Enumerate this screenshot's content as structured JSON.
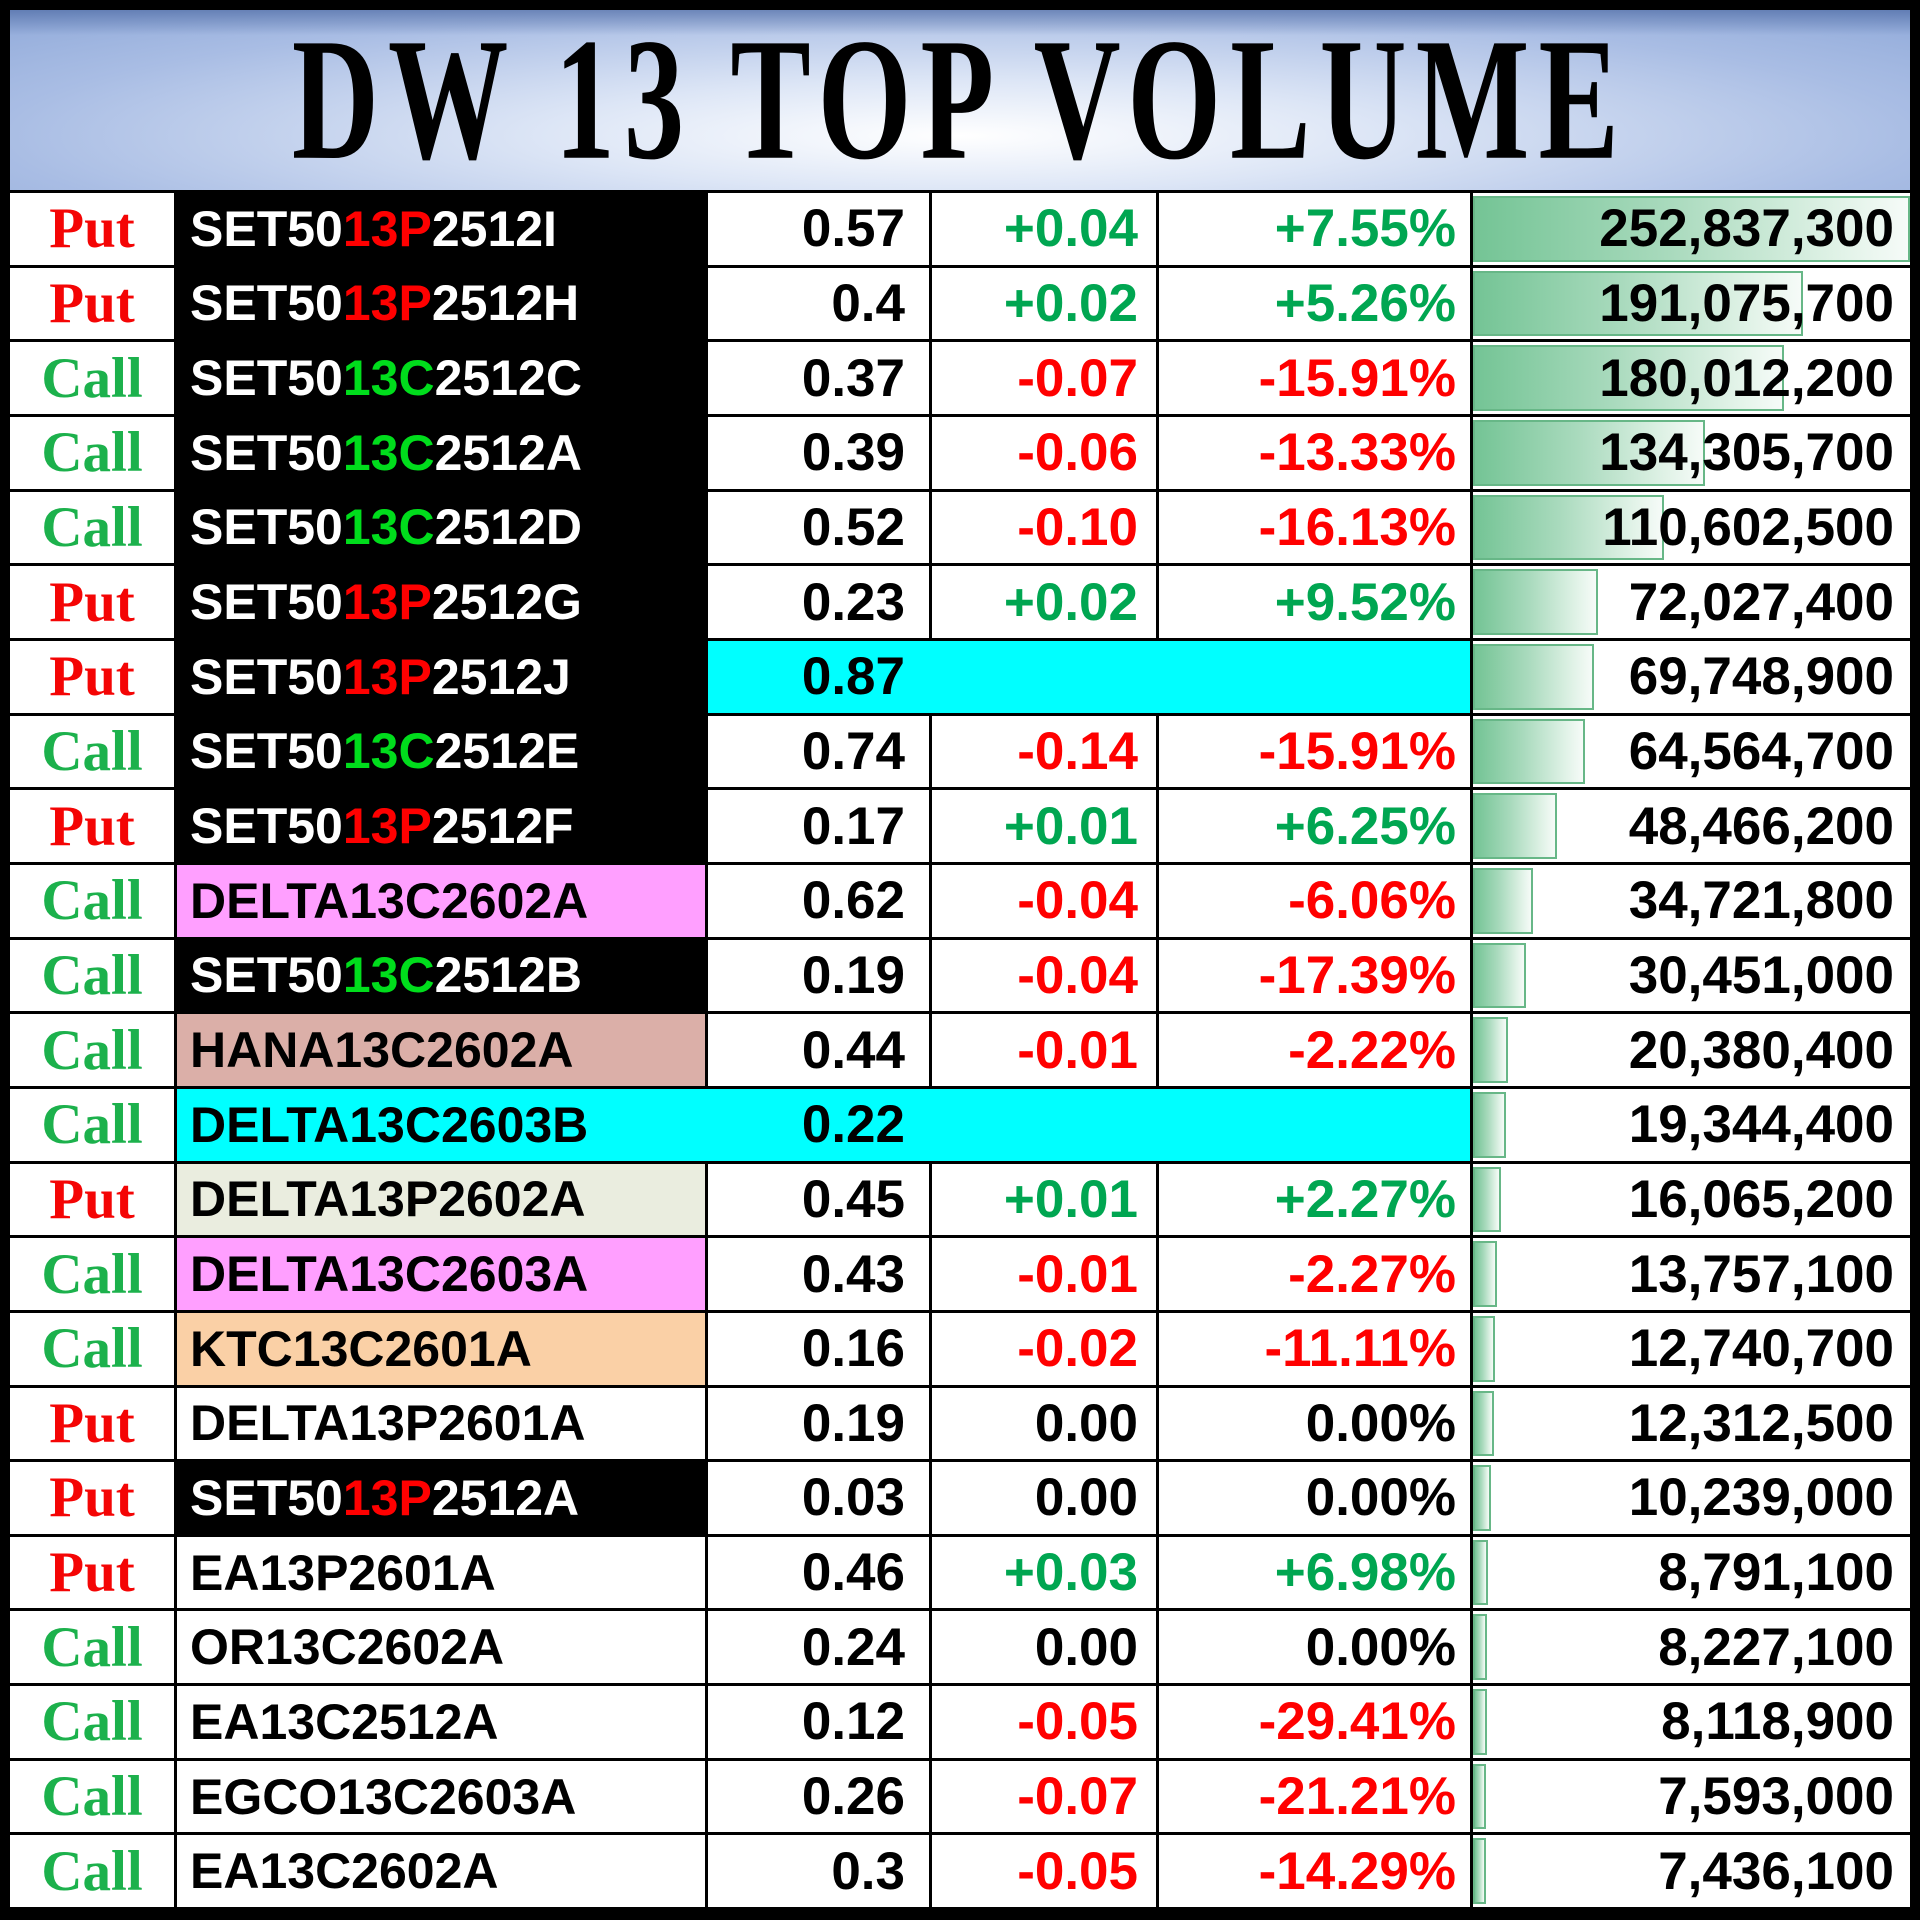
{
  "title": "DW 13 TOP VOLUME",
  "columns": [
    "type",
    "symbol",
    "price",
    "change",
    "change_pct",
    "volume"
  ],
  "colors": {
    "put_red": "#F40505",
    "call_green": "#1CB14C",
    "up_green": "#00A651",
    "down_red": "#FF0000",
    "flat_black": "#000000",
    "symbol_mid_red": "#FF0000",
    "symbol_mid_green": "#00DD1C",
    "highlight_cyan": "#00FFFF",
    "bg_magenta": "#FF9FFF",
    "bg_tan": "#DBAFA8",
    "bg_sage": "#EAEDDF",
    "bg_peach": "#FAD0A6",
    "bar_green": "#74C495",
    "bar_border": "#67B787",
    "header_blue": "#6286C4"
  },
  "rows": [
    {
      "type": "Put",
      "sym_pre": "SET50",
      "sym_mid": "13P",
      "sym_suf": "2512I",
      "sym_bg": "black",
      "price": "0.57",
      "change": "+0.04",
      "change_pct": "+7.55%",
      "volume": "252,837,300",
      "dir": "up",
      "cyan": "none"
    },
    {
      "type": "Put",
      "sym_pre": "SET50",
      "sym_mid": "13P",
      "sym_suf": "2512H",
      "sym_bg": "black",
      "price": "0.4",
      "change": "+0.02",
      "change_pct": "+5.26%",
      "volume": "191,075,700",
      "dir": "up",
      "cyan": "none"
    },
    {
      "type": "Call",
      "sym_pre": "SET50",
      "sym_mid": "13C",
      "sym_suf": "2512C",
      "sym_bg": "black",
      "price": "0.37",
      "change": "-0.07",
      "change_pct": "-15.91%",
      "volume": "180,012,200",
      "dir": "down",
      "cyan": "none"
    },
    {
      "type": "Call",
      "sym_pre": "SET50",
      "sym_mid": "13C",
      "sym_suf": "2512A",
      "sym_bg": "black",
      "price": "0.39",
      "change": "-0.06",
      "change_pct": "-13.33%",
      "volume": "134,305,700",
      "dir": "down",
      "cyan": "none"
    },
    {
      "type": "Call",
      "sym_pre": "SET50",
      "sym_mid": "13C",
      "sym_suf": "2512D",
      "sym_bg": "black",
      "price": "0.52",
      "change": "-0.10",
      "change_pct": "-16.13%",
      "volume": "110,602,500",
      "dir": "down",
      "cyan": "none"
    },
    {
      "type": "Put",
      "sym_pre": "SET50",
      "sym_mid": "13P",
      "sym_suf": "2512G",
      "sym_bg": "black",
      "price": "0.23",
      "change": "+0.02",
      "change_pct": "+9.52%",
      "volume": "72,027,400",
      "dir": "up",
      "cyan": "none"
    },
    {
      "type": "Put",
      "sym_pre": "SET50",
      "sym_mid": "13P",
      "sym_suf": "2512J",
      "sym_bg": "black",
      "price": "0.87",
      "change": "",
      "change_pct": "",
      "volume": "69,748,900",
      "dir": "none",
      "cyan": "price_to_pct"
    },
    {
      "type": "Call",
      "sym_pre": "SET50",
      "sym_mid": "13C",
      "sym_suf": "2512E",
      "sym_bg": "black",
      "price": "0.74",
      "change": "-0.14",
      "change_pct": "-15.91%",
      "volume": "64,564,700",
      "dir": "down",
      "cyan": "none"
    },
    {
      "type": "Put",
      "sym_pre": "SET50",
      "sym_mid": "13P",
      "sym_suf": "2512F",
      "sym_bg": "black",
      "price": "0.17",
      "change": "+0.01",
      "change_pct": "+6.25%",
      "volume": "48,466,200",
      "dir": "up",
      "cyan": "none"
    },
    {
      "type": "Call",
      "sym_pre": "DELTA13C2602A",
      "sym_mid": "",
      "sym_suf": "",
      "sym_bg": "magenta",
      "price": "0.62",
      "change": "-0.04",
      "change_pct": "-6.06%",
      "volume": "34,721,800",
      "dir": "down",
      "cyan": "none"
    },
    {
      "type": "Call",
      "sym_pre": "SET50",
      "sym_mid": "13C",
      "sym_suf": "2512B",
      "sym_bg": "black",
      "price": "0.19",
      "change": "-0.04",
      "change_pct": "-17.39%",
      "volume": "30,451,000",
      "dir": "down",
      "cyan": "none"
    },
    {
      "type": "Call",
      "sym_pre": "HANA13C2602A",
      "sym_mid": "",
      "sym_suf": "",
      "sym_bg": "tan",
      "price": "0.44",
      "change": "-0.01",
      "change_pct": "-2.22%",
      "volume": "20,380,400",
      "dir": "down",
      "cyan": "none"
    },
    {
      "type": "Call",
      "sym_pre": "DELTA13C2603B",
      "sym_mid": "",
      "sym_suf": "",
      "sym_bg": "cyan",
      "price": "0.22",
      "change": "",
      "change_pct": "",
      "volume": "19,344,400",
      "dir": "none",
      "cyan": "symbol_to_pct"
    },
    {
      "type": "Put",
      "sym_pre": "DELTA13P2602A",
      "sym_mid": "",
      "sym_suf": "",
      "sym_bg": "sage",
      "price": "0.45",
      "change": "+0.01",
      "change_pct": "+2.27%",
      "volume": "16,065,200",
      "dir": "up",
      "cyan": "none"
    },
    {
      "type": "Call",
      "sym_pre": "DELTA13C2603A",
      "sym_mid": "",
      "sym_suf": "",
      "sym_bg": "magenta",
      "price": "0.43",
      "change": "-0.01",
      "change_pct": "-2.27%",
      "volume": "13,757,100",
      "dir": "down",
      "cyan": "none"
    },
    {
      "type": "Call",
      "sym_pre": "KTC13C2601A",
      "sym_mid": "",
      "sym_suf": "",
      "sym_bg": "peach",
      "price": "0.16",
      "change": "-0.02",
      "change_pct": "-11.11%",
      "volume": "12,740,700",
      "dir": "down",
      "cyan": "none"
    },
    {
      "type": "Put",
      "sym_pre": "DELTA13P2601A",
      "sym_mid": "",
      "sym_suf": "",
      "sym_bg": "white",
      "price": "0.19",
      "change": "0.00",
      "change_pct": "0.00%",
      "volume": "12,312,500",
      "dir": "flat",
      "cyan": "none"
    },
    {
      "type": "Put",
      "sym_pre": "SET50",
      "sym_mid": "13P",
      "sym_suf": "2512A",
      "sym_bg": "black",
      "price": "0.03",
      "change": "0.00",
      "change_pct": "0.00%",
      "volume": "10,239,000",
      "dir": "flat",
      "cyan": "none"
    },
    {
      "type": "Put",
      "sym_pre": "EA13P2601A",
      "sym_mid": "",
      "sym_suf": "",
      "sym_bg": "white",
      "price": "0.46",
      "change": "+0.03",
      "change_pct": "+6.98%",
      "volume": "8,791,100",
      "dir": "up",
      "cyan": "none"
    },
    {
      "type": "Call",
      "sym_pre": "OR13C2602A",
      "sym_mid": "",
      "sym_suf": "",
      "sym_bg": "white",
      "price": "0.24",
      "change": "0.00",
      "change_pct": "0.00%",
      "volume": "8,227,100",
      "dir": "flat",
      "cyan": "none"
    },
    {
      "type": "Call",
      "sym_pre": "EA13C2512A",
      "sym_mid": "",
      "sym_suf": "",
      "sym_bg": "white",
      "price": "0.12",
      "change": "-0.05",
      "change_pct": "-29.41%",
      "volume": "8,118,900",
      "dir": "down",
      "cyan": "none"
    },
    {
      "type": "Call",
      "sym_pre": "EGCO13C2603A",
      "sym_mid": "",
      "sym_suf": "",
      "sym_bg": "white",
      "price": "0.26",
      "change": "-0.07",
      "change_pct": "-21.21%",
      "volume": "7,593,000",
      "dir": "down",
      "cyan": "none"
    },
    {
      "type": "Call",
      "sym_pre": "EA13C2602A",
      "sym_mid": "",
      "sym_suf": "",
      "sym_bg": "white",
      "price": "0.3",
      "change": "-0.05",
      "change_pct": "-14.29%",
      "volume": "7,436,100",
      "dir": "down",
      "cyan": "none"
    }
  ]
}
